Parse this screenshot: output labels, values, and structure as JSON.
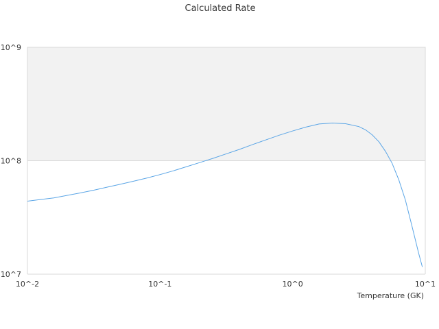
{
  "chart_data": {
    "type": "line",
    "title": "Calculated Rate",
    "xlabel": "Temperature (GK)",
    "ylabel": "",
    "x_scale": "log",
    "y_scale": "log",
    "xlim": [
      0.01,
      10
    ],
    "ylim": [
      10000000,
      1000000000
    ],
    "x_ticks": [
      "10^-2",
      "10^-1",
      "10^0",
      "10^1"
    ],
    "y_ticks": [
      "10^7",
      "10^8",
      "10^9"
    ],
    "shaded_band": [
      100000000,
      1000000000
    ],
    "grid": false,
    "series": [
      {
        "color": "#5aa5e6",
        "x": [
          0.01,
          0.0125,
          0.0158,
          0.02,
          0.025,
          0.0316,
          0.04,
          0.05,
          0.0631,
          0.08,
          0.1,
          0.126,
          0.158,
          0.2,
          0.251,
          0.316,
          0.398,
          0.5,
          0.631,
          0.794,
          1.0,
          1.26,
          1.58,
          2.0,
          2.51,
          3.16,
          3.55,
          3.98,
          4.47,
          5.01,
          5.62,
          6.31,
          7.08,
          7.94,
          8.91,
          9.5
        ],
        "y": [
          44000000,
          45500000,
          47000000,
          49500000,
          52000000,
          55000000,
          58500000,
          62000000,
          66000000,
          70500000,
          75500000,
          81500000,
          88500000,
          96500000,
          105000000,
          115000000,
          126000000,
          139000000,
          153000000,
          168000000,
          183000000,
          198000000,
          211000000,
          215000000,
          212000000,
          200000000,
          187000000,
          169000000,
          147000000,
          121000000,
          95000000,
          68000000,
          45000000,
          26500000,
          15300000,
          11600000
        ]
      }
    ]
  }
}
